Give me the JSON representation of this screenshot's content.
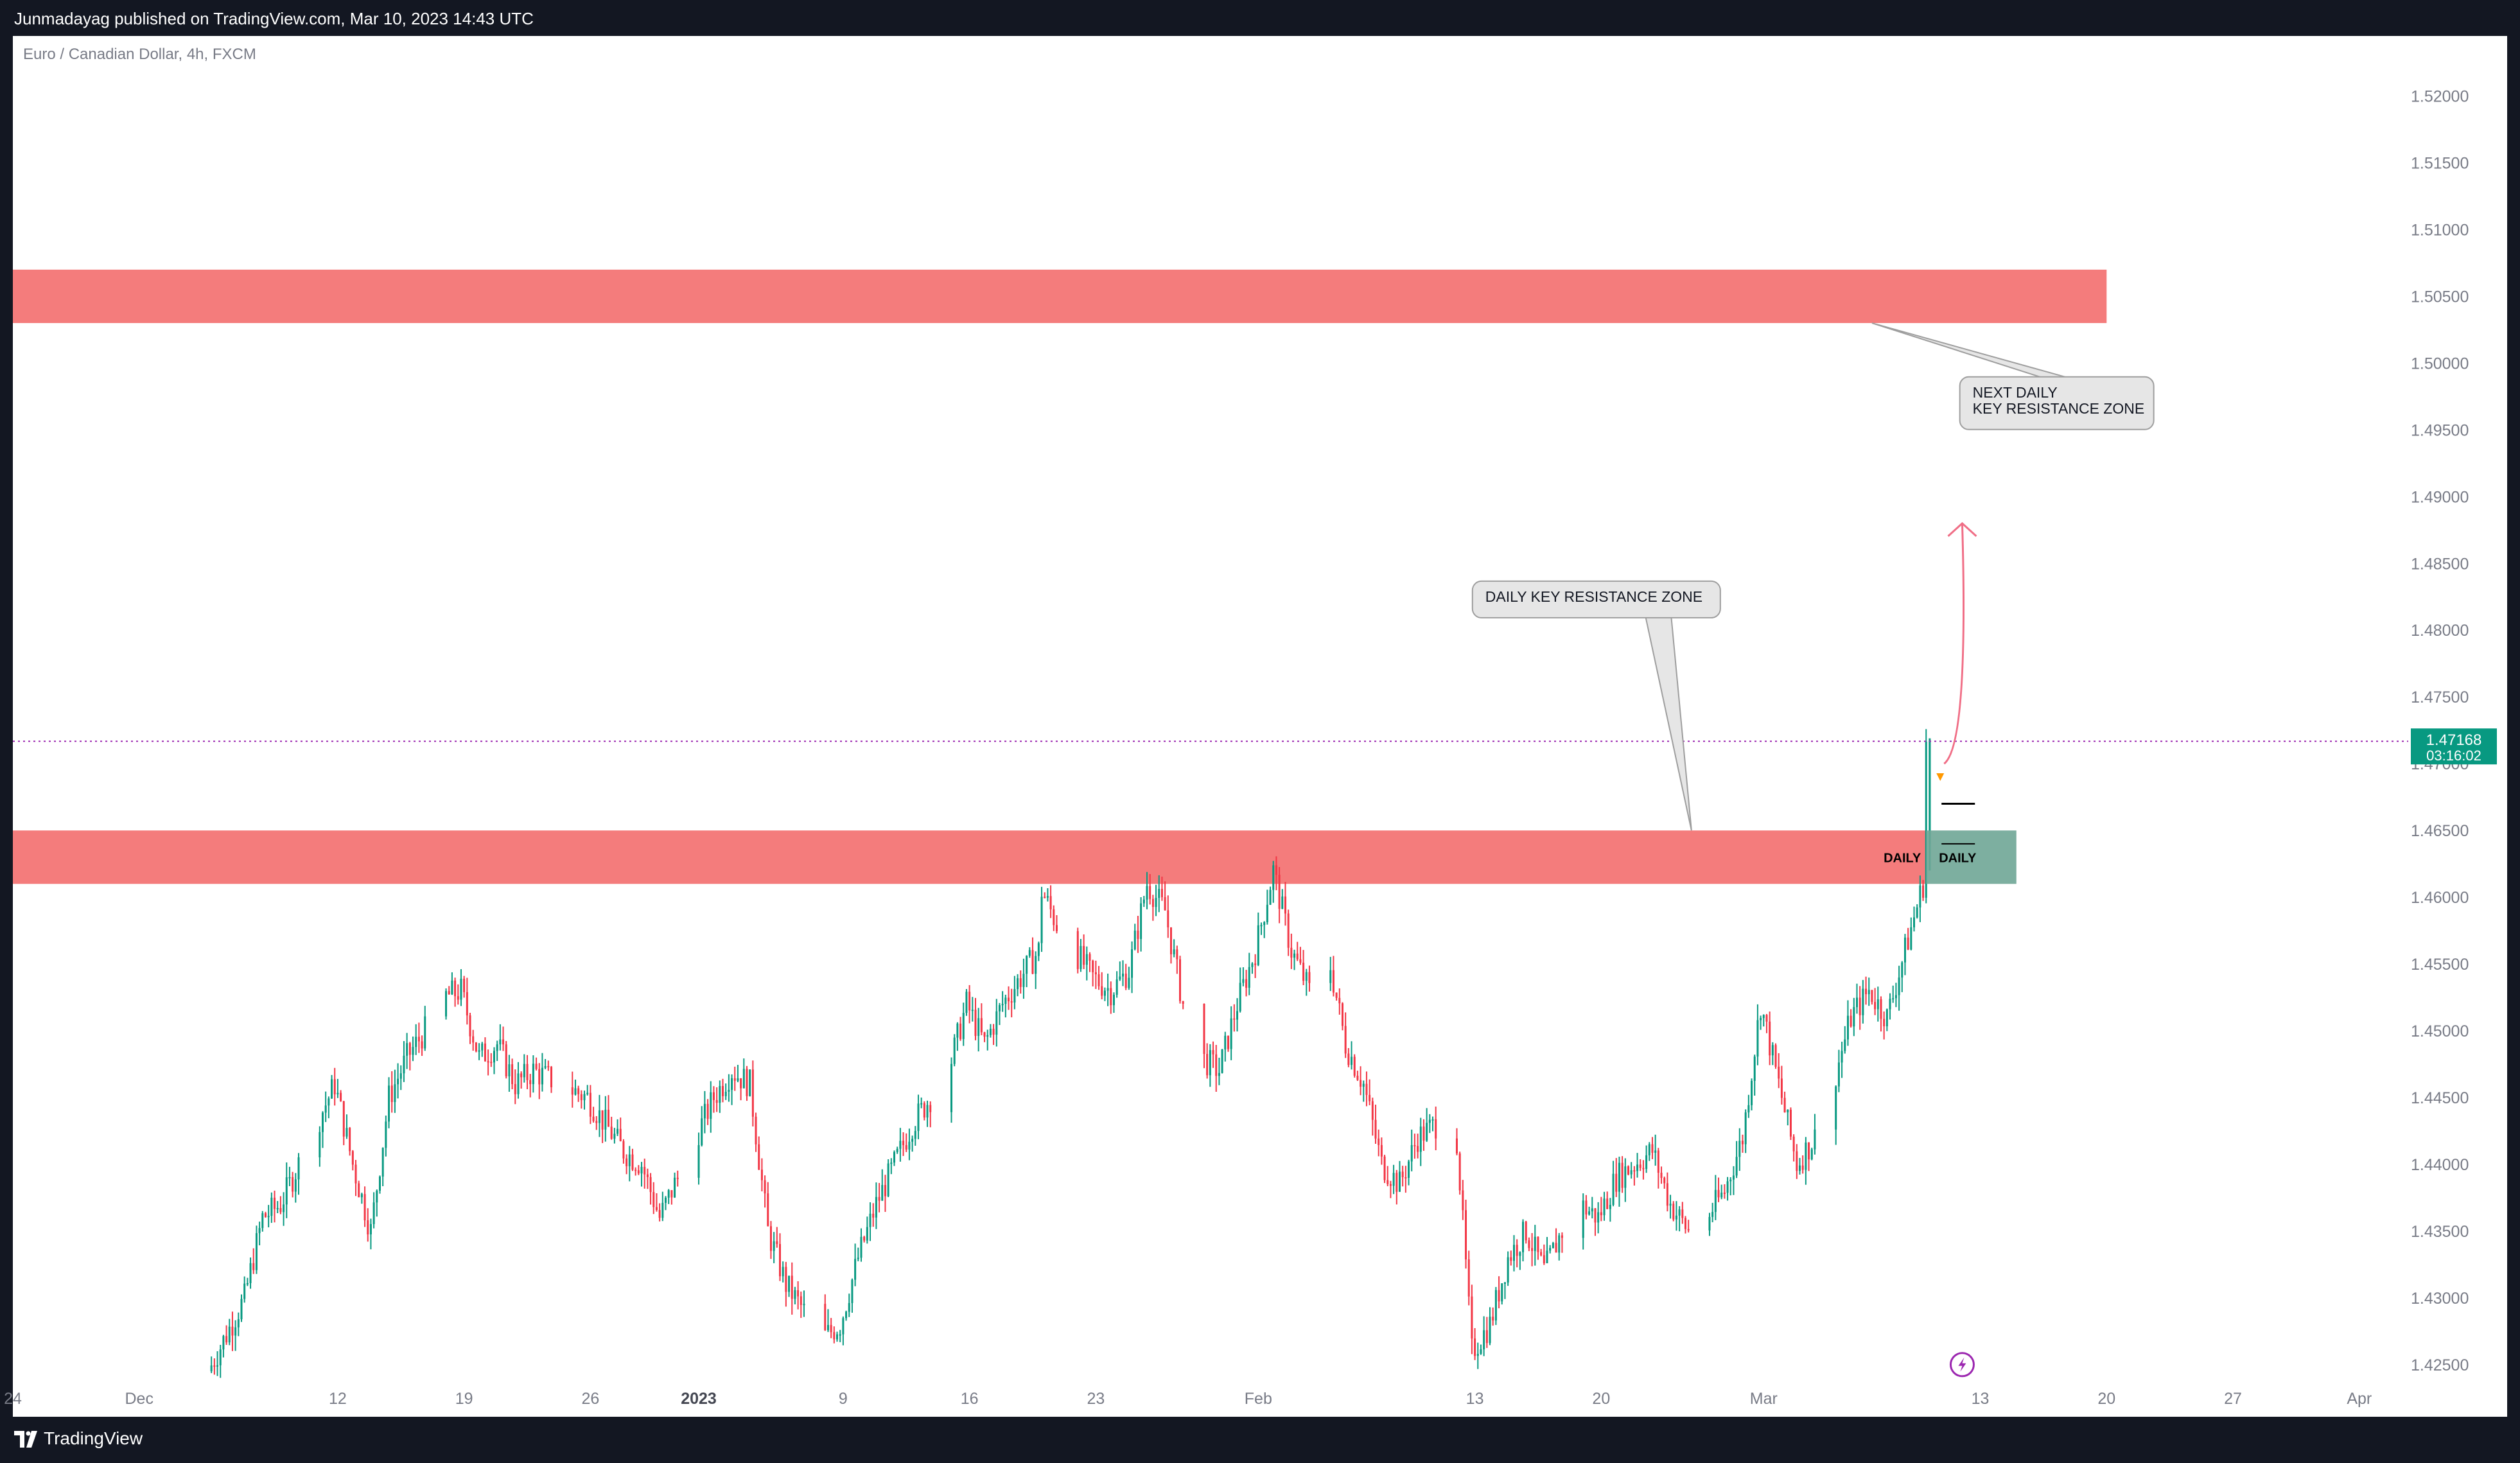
{
  "header": {
    "published_text": "Junmadayag published on TradingView.com, Mar 10, 2023 14:43 UTC"
  },
  "footer": {
    "brand": "TradingView",
    "brand_icon": "tradingview-logo-icon"
  },
  "colors": {
    "up": "#089981",
    "down": "#f23645",
    "zone": "#f47c7c",
    "daily_box": "#6fa696",
    "price_label": "#089981",
    "price_line": "#9c27b0",
    "arrow": "#f06e86"
  },
  "chart_data": {
    "type": "candlestick",
    "symbol_text": "Euro / Canadian Dollar, 4h, FXCM",
    "timeframe": "4h",
    "current_price": "1.47168",
    "countdown": "03:16:02",
    "y_range": [
      1.4235,
      1.5245
    ],
    "y_ticks": [
      "1.52000",
      "1.51500",
      "1.51000",
      "1.50500",
      "1.50000",
      "1.49500",
      "1.49000",
      "1.48500",
      "1.48000",
      "1.47500",
      "1.47000",
      "1.46500",
      "1.46000",
      "1.45500",
      "1.45000",
      "1.44500",
      "1.44000",
      "1.43500",
      "1.43000",
      "1.42500"
    ],
    "x_range": [
      "2022-11-24",
      "2023-04-05"
    ],
    "x_ticks": [
      {
        "label": "24",
        "date": "2022-11-24",
        "bold": false
      },
      {
        "label": "Dec",
        "date": "2022-12-01",
        "bold": false
      },
      {
        "label": "12",
        "date": "2022-12-12",
        "bold": false
      },
      {
        "label": "19",
        "date": "2022-12-19",
        "bold": false
      },
      {
        "label": "26",
        "date": "2022-12-26",
        "bold": false
      },
      {
        "label": "2023",
        "date": "2023-01-01",
        "bold": true
      },
      {
        "label": "9",
        "date": "2023-01-09",
        "bold": false
      },
      {
        "label": "16",
        "date": "2023-01-16",
        "bold": false
      },
      {
        "label": "23",
        "date": "2023-01-23",
        "bold": false
      },
      {
        "label": "Feb",
        "date": "2023-02-01",
        "bold": false
      },
      {
        "label": "13",
        "date": "2023-02-13",
        "bold": false
      },
      {
        "label": "20",
        "date": "2023-02-20",
        "bold": false
      },
      {
        "label": "Mar",
        "date": "2023-03-01",
        "bold": false
      },
      {
        "label": "13",
        "date": "2023-03-13",
        "bold": false
      },
      {
        "label": "20",
        "date": "2023-03-20",
        "bold": false
      },
      {
        "label": "27",
        "date": "2023-03-27",
        "bold": false
      },
      {
        "label": "Apr",
        "date": "2023-04-03",
        "bold": false
      }
    ],
    "price_path": [
      [
        "2022-12-05",
        1.4245
      ],
      [
        "2022-12-07",
        1.43
      ],
      [
        "2022-12-08",
        1.436
      ],
      [
        "2022-12-09",
        1.437
      ],
      [
        "2022-12-10",
        1.44
      ],
      [
        "2022-12-12",
        1.446
      ],
      [
        "2022-12-13",
        1.44
      ],
      [
        "2022-12-14",
        1.435
      ],
      [
        "2022-12-15",
        1.445
      ],
      [
        "2022-12-16",
        1.448
      ],
      [
        "2022-12-17",
        1.45
      ],
      [
        "2022-12-17",
        1.452
      ],
      [
        "2022-12-19",
        1.453
      ],
      [
        "2022-12-20",
        1.448
      ],
      [
        "2022-12-21",
        1.449
      ],
      [
        "2022-12-22",
        1.446
      ],
      [
        "2022-12-23",
        1.447
      ],
      [
        "2022-12-26",
        1.445
      ],
      [
        "2022-12-27",
        1.443
      ],
      [
        "2022-12-28",
        1.441
      ],
      [
        "2022-12-29",
        1.44
      ],
      [
        "2022-12-30",
        1.436
      ],
      [
        "2022-12-31",
        1.439
      ],
      [
        "2023-01-02",
        1.445
      ],
      [
        "2023-01-03",
        1.447
      ],
      [
        "2023-01-04",
        1.446
      ],
      [
        "2023-01-05",
        1.435
      ],
      [
        "2023-01-06",
        1.431
      ],
      [
        "2023-01-07",
        1.429
      ],
      [
        "2023-01-08",
        1.427
      ],
      [
        "2023-01-09",
        1.428
      ],
      [
        "2023-01-10",
        1.433
      ],
      [
        "2023-01-11",
        1.437
      ],
      [
        "2023-01-12",
        1.44
      ],
      [
        "2023-01-13",
        1.443
      ],
      [
        "2023-01-15",
        1.447
      ],
      [
        "2023-01-16",
        1.452
      ],
      [
        "2023-01-17",
        1.449
      ],
      [
        "2023-01-18",
        1.452
      ],
      [
        "2023-01-19",
        1.454
      ],
      [
        "2023-01-20",
        1.456
      ],
      [
        "2023-01-20",
        1.461
      ],
      [
        "2023-01-21",
        1.458
      ],
      [
        "2023-01-22",
        1.456
      ],
      [
        "2023-01-23",
        1.454
      ],
      [
        "2023-01-24",
        1.453
      ],
      [
        "2023-01-25",
        1.4545
      ],
      [
        "2023-01-26",
        1.461
      ],
      [
        "2023-01-27",
        1.459
      ],
      [
        "2023-01-28",
        1.452
      ],
      [
        "2023-01-29",
        1.448
      ],
      [
        "2023-01-30",
        1.447
      ],
      [
        "2023-01-31",
        1.452
      ],
      [
        "2023-02-01",
        1.456
      ],
      [
        "2023-02-02",
        1.462
      ],
      [
        "2023-02-03",
        1.456
      ],
      [
        "2023-02-04",
        1.453
      ],
      [
        "2023-02-05",
        1.456
      ],
      [
        "2023-02-06",
        1.449
      ],
      [
        "2023-02-07",
        1.446
      ],
      [
        "2023-02-08",
        1.44
      ],
      [
        "2023-02-09",
        1.4385
      ],
      [
        "2023-02-10",
        1.442
      ],
      [
        "2023-02-11",
        1.443
      ],
      [
        "2023-02-12",
        1.445
      ],
      [
        "2023-02-13",
        1.426
      ],
      [
        "2023-02-14",
        1.428
      ],
      [
        "2023-02-15",
        1.433
      ],
      [
        "2023-02-16",
        1.435
      ],
      [
        "2023-02-17",
        1.432
      ],
      [
        "2023-02-18",
        1.435
      ],
      [
        "2023-02-19",
        1.437
      ],
      [
        "2023-02-20",
        1.436
      ],
      [
        "2023-02-21",
        1.439
      ],
      [
        "2023-02-22",
        1.44
      ],
      [
        "2023-02-23",
        1.441
      ],
      [
        "2023-02-24",
        1.437
      ],
      [
        "2023-02-25",
        1.435
      ],
      [
        "2023-02-26",
        1.436
      ],
      [
        "2023-02-27",
        1.438
      ],
      [
        "2023-02-28",
        1.442
      ],
      [
        "2023-03-01",
        1.452
      ],
      [
        "2023-03-02",
        1.446
      ],
      [
        "2023-03-03",
        1.44
      ],
      [
        "2023-03-04",
        1.442
      ],
      [
        "2023-03-05",
        1.446
      ],
      [
        "2023-03-06",
        1.451
      ],
      [
        "2023-03-07",
        1.453
      ],
      [
        "2023-03-08",
        1.451
      ],
      [
        "2023-03-09",
        1.456
      ],
      [
        "2023-03-10",
        1.461
      ],
      [
        "2023-03-10",
        1.4717
      ]
    ],
    "zones": [
      {
        "name": "next-daily-resistance-zone",
        "from": 1.503,
        "to": 1.507,
        "start": "2022-11-24",
        "end": "2023-03-20"
      },
      {
        "name": "daily-resistance-zone",
        "from": 1.461,
        "to": 1.465,
        "start": "2022-11-24",
        "end": "2023-03-10"
      }
    ],
    "daily_box": {
      "from": 1.461,
      "to": 1.465,
      "start": "2023-03-10",
      "end": "2023-03-15",
      "label_left": "DAILY",
      "label_right": "DAILY"
    },
    "callouts": [
      {
        "name": "callout-next-daily",
        "lines": [
          "NEXT DAILY",
          "KEY RESISTANCE ZONE"
        ],
        "anchor_date": "2023-03-14",
        "anchor_price": 1.497,
        "pointer_date": "2023-03-07",
        "pointer_price": 1.503
      },
      {
        "name": "callout-daily",
        "lines": [
          "DAILY KEY RESISTANCE ZONE"
        ],
        "anchor_date": "2023-02-15",
        "anchor_price": 1.4823,
        "pointer_date": "2023-02-25",
        "pointer_price": 1.465
      }
    ],
    "projection_arrow": {
      "from_date": "2023-03-11",
      "from_price": 1.47,
      "to_date": "2023-03-12",
      "to_price": 1.488
    }
  }
}
